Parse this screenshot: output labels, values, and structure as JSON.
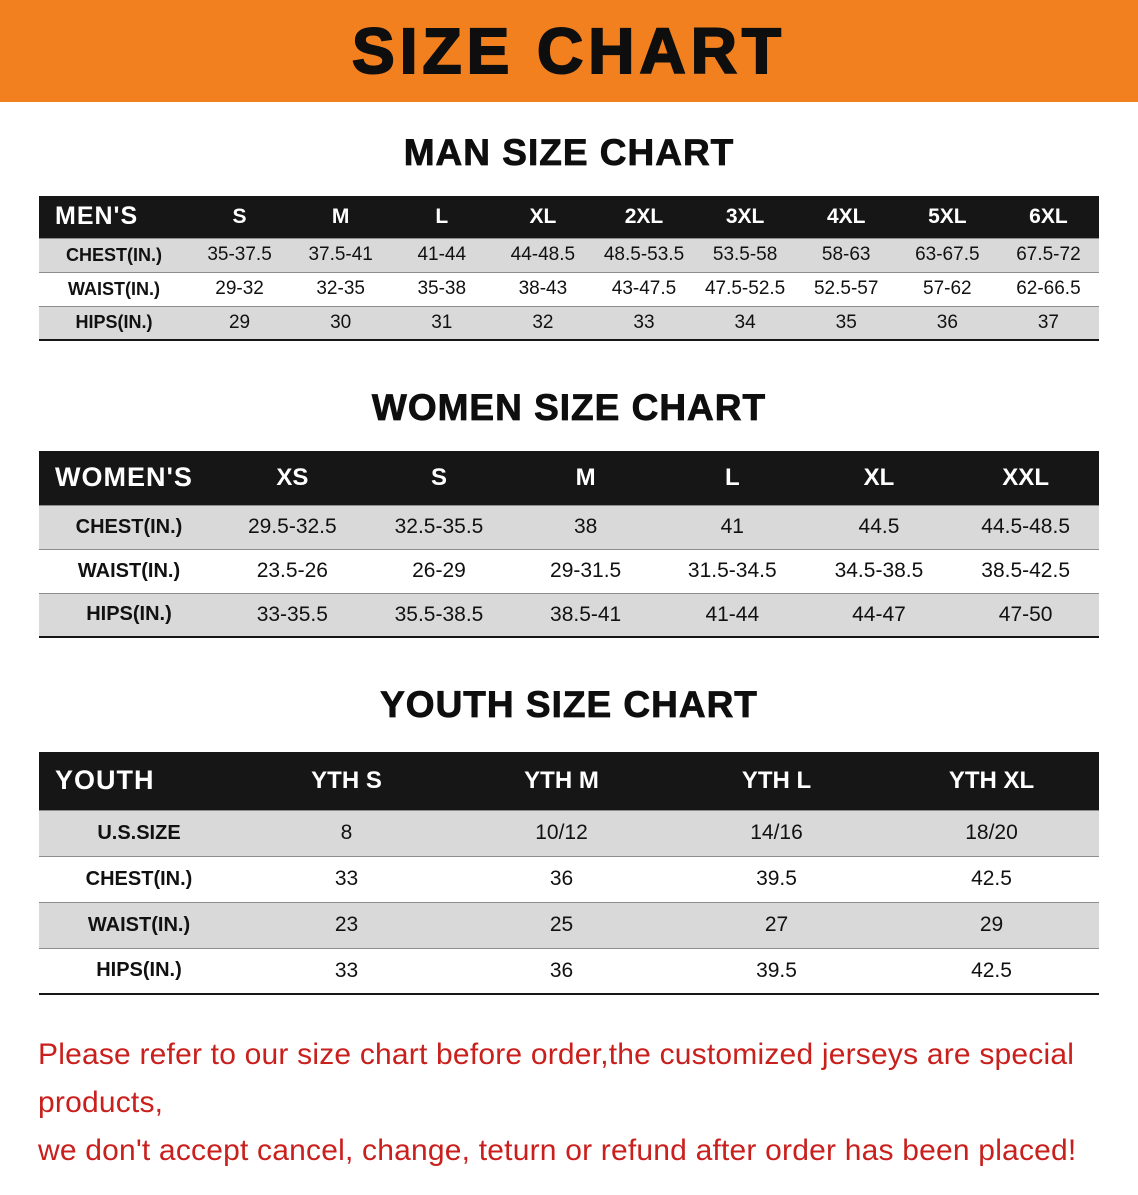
{
  "banner": {
    "title": "SIZE CHART",
    "background_color": "#f2801e",
    "text_color": "#0e0e0e"
  },
  "sections": [
    {
      "heading": "MAN SIZE CHART",
      "table": {
        "header": [
          "MEN'S",
          "S",
          "M",
          "L",
          "XL",
          "2XL",
          "3XL",
          "4XL",
          "5XL",
          "6XL"
        ],
        "rows": [
          [
            "CHEST(IN.)",
            "35-37.5",
            "37.5-41",
            "41-44",
            "44-48.5",
            "48.5-53.5",
            "53.5-58",
            "58-63",
            "63-67.5",
            "67.5-72"
          ],
          [
            "WAIST(IN.)",
            "29-32",
            "32-35",
            "35-38",
            "38-43",
            "43-47.5",
            "47.5-52.5",
            "52.5-57",
            "57-62",
            "62-66.5"
          ],
          [
            "HIPS(IN.)",
            "29",
            "30",
            "31",
            "32",
            "33",
            "34",
            "35",
            "36",
            "37"
          ]
        ]
      }
    },
    {
      "heading": "WOMEN SIZE CHART",
      "table": {
        "header": [
          "WOMEN'S",
          "XS",
          "S",
          "M",
          "L",
          "XL",
          "XXL"
        ],
        "rows": [
          [
            "CHEST(IN.)",
            "29.5-32.5",
            "32.5-35.5",
            "38",
            "41",
            "44.5",
            "44.5-48.5"
          ],
          [
            "WAIST(IN.)",
            "23.5-26",
            "26-29",
            "29-31.5",
            "31.5-34.5",
            "34.5-38.5",
            "38.5-42.5"
          ],
          [
            "HIPS(IN.)",
            "33-35.5",
            "35.5-38.5",
            "38.5-41",
            "41-44",
            "44-47",
            "47-50"
          ]
        ]
      }
    },
    {
      "heading": "YOUTH SIZE CHART",
      "table": {
        "header": [
          "YOUTH",
          "YTH S",
          "YTH M",
          "YTH L",
          "YTH XL"
        ],
        "rows": [
          [
            "U.S.SIZE",
            "8",
            "10/12",
            "14/16",
            "18/20"
          ],
          [
            "CHEST(IN.)",
            "33",
            "36",
            "39.5",
            "42.5"
          ],
          [
            "WAIST(IN.)",
            "23",
            "25",
            "27",
            "29"
          ],
          [
            "HIPS(IN.)",
            "33",
            "36",
            "39.5",
            "42.5"
          ]
        ]
      }
    }
  ],
  "disclaimer": {
    "line1": "Please refer to our size chart before order,the customized jerseys are special products,",
    "line2": "we don't accept cancel, change, teturn or refund after order has been placed!",
    "text_color": "#c9201d"
  },
  "colors": {
    "table_header_bg": "#161616",
    "table_header_text": "#ffffff",
    "row_stripe_bg": "#d9d9d9"
  }
}
